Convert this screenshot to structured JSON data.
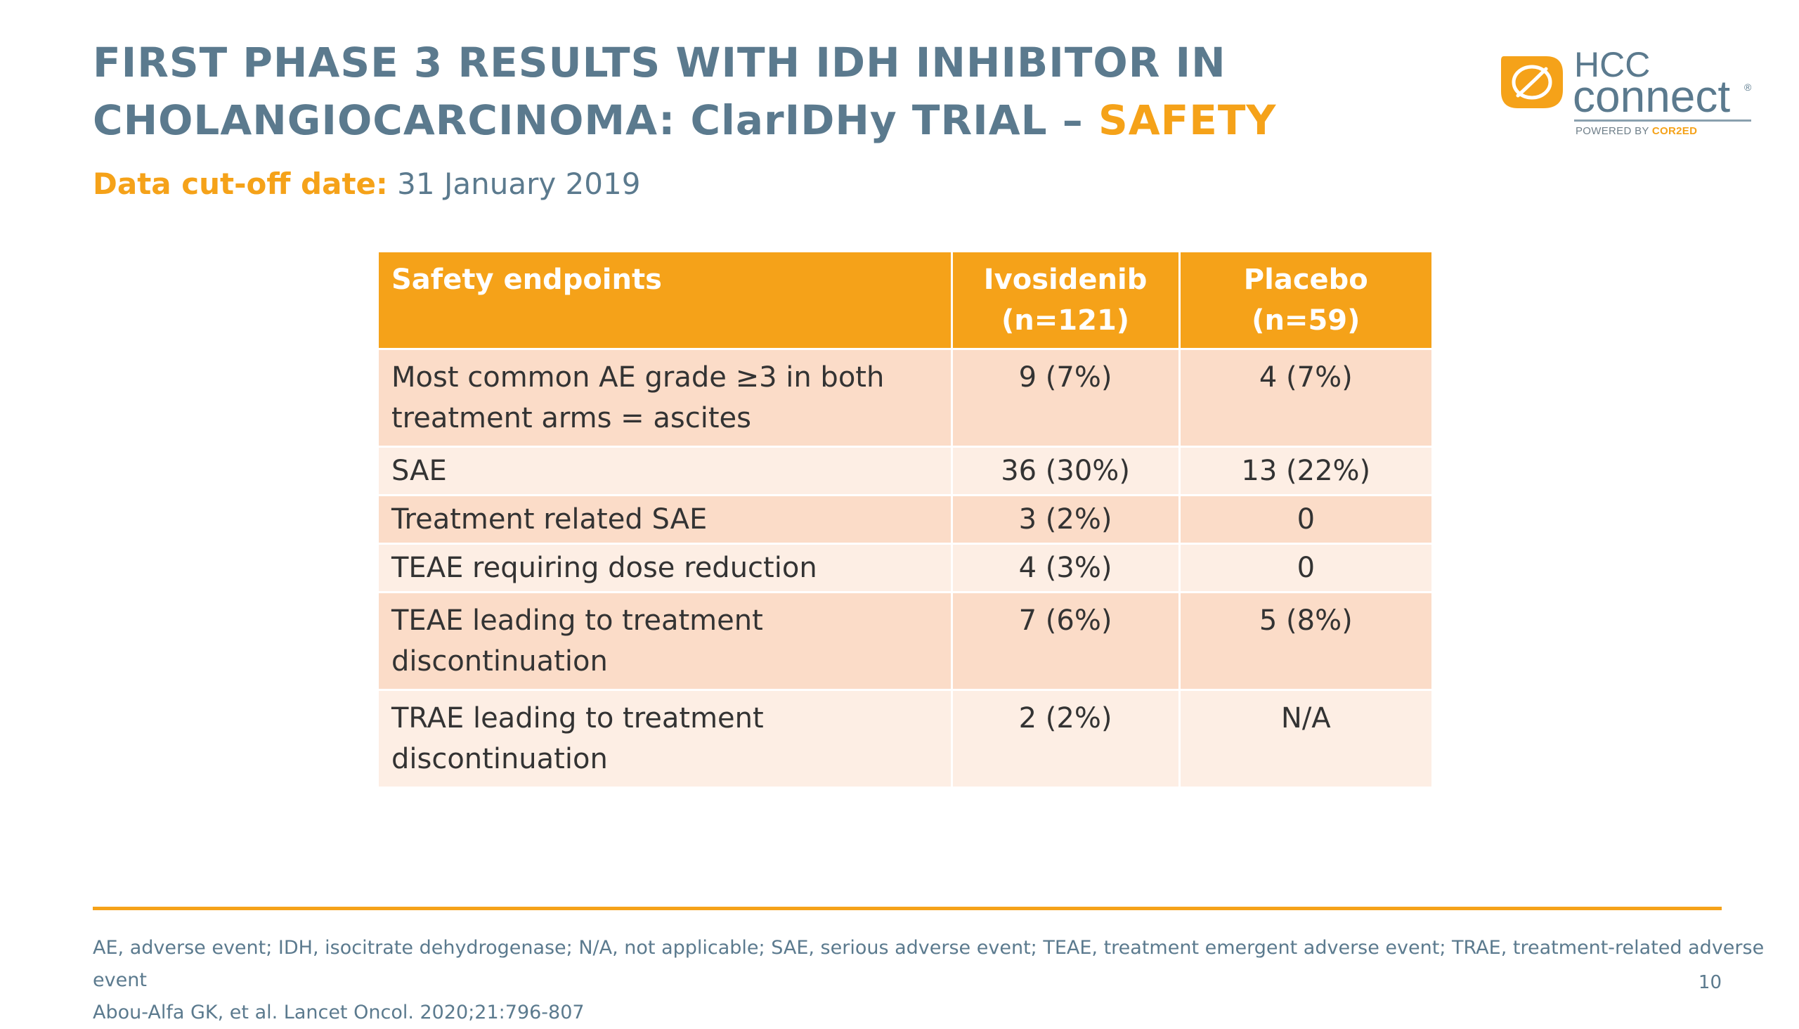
{
  "title": {
    "line1": "FIRST PHASE 3 RESULTS WITH IDH INHIBITOR IN",
    "line2_main": "CHOLANGIOCARCINOMA: ClarIDHy TRIAL – ",
    "line2_accent": "SAFETY"
  },
  "subtitle": {
    "label": "Data cut-off date:",
    "value": " 31 January 2019"
  },
  "logo": {
    "hcc": "HCC",
    "connect": "connect",
    "registered": "®",
    "powered_by": "POWERED BY ",
    "brand": "COR2ED"
  },
  "table": {
    "headers": {
      "endpoint": "Safety endpoints",
      "ivosidenib_name": "Ivosidenib",
      "ivosidenib_n": "(n=121)",
      "placebo_name": "Placebo",
      "placebo_n": "(n=59)"
    },
    "rows": [
      {
        "endpoint_line1": "Most common AE grade ≥3 in both",
        "endpoint_line2": "treatment arms = ascites",
        "ivosidenib": "9 (7%)",
        "placebo": "4 (7%)"
      },
      {
        "endpoint_line1": "SAE",
        "ivosidenib": "36 (30%)",
        "placebo": "13 (22%)"
      },
      {
        "endpoint_line1": "Treatment related SAE",
        "ivosidenib": "3 (2%)",
        "placebo": "0"
      },
      {
        "endpoint_line1": "TEAE requiring dose reduction",
        "ivosidenib": "4 (3%)",
        "placebo": "0"
      },
      {
        "endpoint_line1": "TEAE leading to treatment",
        "endpoint_line2": "discontinuation",
        "ivosidenib": "7 (6%)",
        "placebo": "5 (8%)"
      },
      {
        "endpoint_line1": "TRAE leading to treatment",
        "endpoint_line2": "discontinuation",
        "ivosidenib": "2 (2%)",
        "placebo": "N/A"
      }
    ]
  },
  "footnotes": {
    "abbreviations": "AE, adverse event; IDH, isocitrate dehydrogenase; N/A, not applicable; SAE, serious adverse event; TEAE, treatment emergent adverse event; TRAE, treatment-related adverse event",
    "reference": "Abou-Alfa GK, et al. Lancet Oncol. 2020;21:796-807"
  },
  "page_number": "10",
  "colors": {
    "accent": "#f5a219",
    "title": "#5b7a8e",
    "row_dark": "#fbdcc8",
    "row_light": "#fdeee4"
  }
}
